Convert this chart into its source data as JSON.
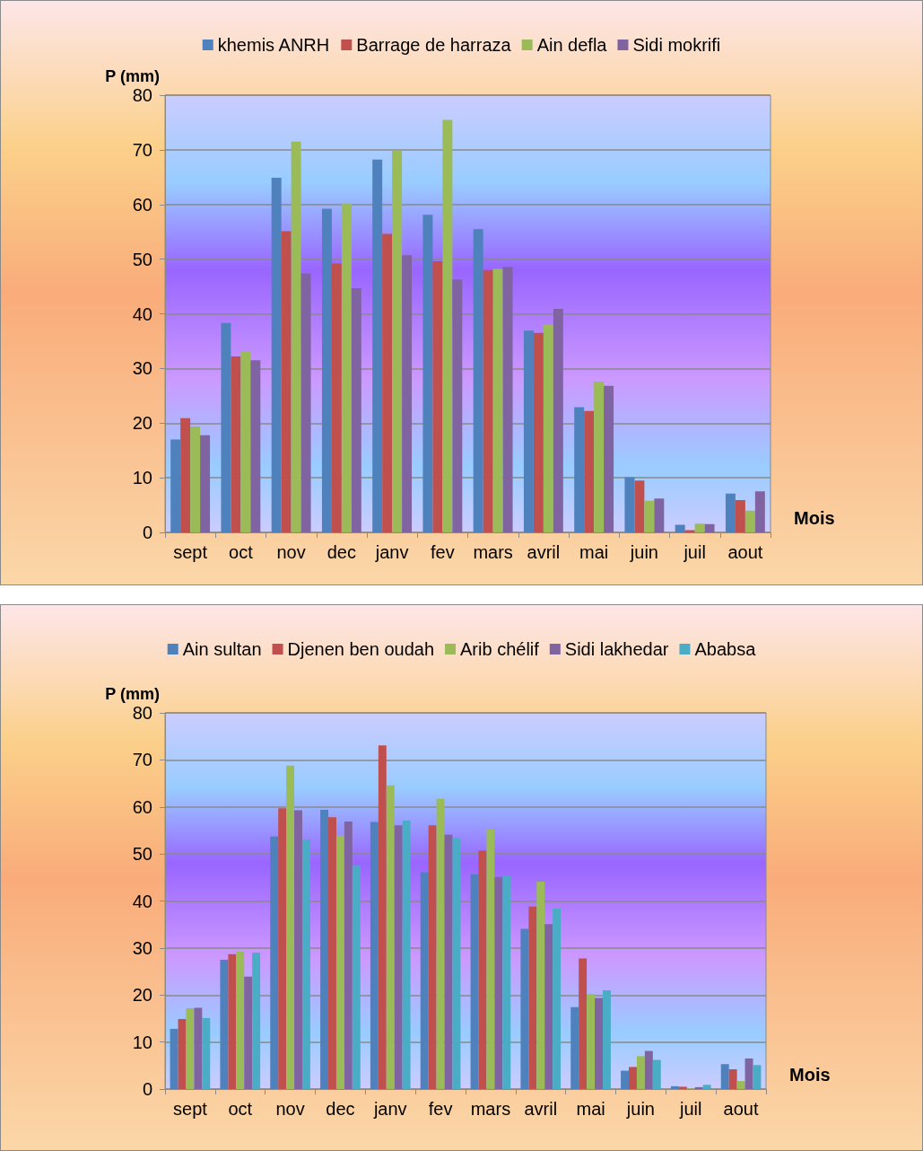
{
  "chart_data": [
    {
      "type": "bar",
      "xlabel": "Mois",
      "ylabel": "P (mm)",
      "categories": [
        "sept",
        "oct",
        "nov",
        "dec",
        "janv",
        "fev",
        "mars",
        "avril",
        "mai",
        "juin",
        "juil",
        "aout"
      ],
      "series": [
        {
          "name": "khemis ANRH",
          "color": "#4f81bd",
          "values": [
            17.0,
            38.3,
            64.9,
            59.2,
            68.2,
            58.1,
            55.5,
            36.9,
            22.9,
            10.1,
            1.4,
            7.1
          ]
        },
        {
          "name": "Barrage de harraza",
          "color": "#c0504d",
          "values": [
            20.9,
            32.2,
            55.1,
            49.2,
            54.6,
            49.6,
            48.0,
            36.5,
            22.2,
            9.5,
            0.4,
            5.9
          ]
        },
        {
          "name": "Ain defla",
          "color": "#9bbb59",
          "values": [
            19.4,
            33.2,
            71.5,
            60.2,
            69.9,
            75.5,
            48.2,
            38.0,
            27.6,
            5.8,
            1.6,
            4.0
          ]
        },
        {
          "name": "Sidi mokrifi",
          "color": "#8064a2",
          "values": [
            17.8,
            31.5,
            47.4,
            44.7,
            50.7,
            46.3,
            48.6,
            40.9,
            26.8,
            6.2,
            1.5,
            7.5
          ]
        }
      ],
      "ylim": [
        0,
        80
      ],
      "yticks": [
        0,
        10,
        20,
        30,
        40,
        50,
        60,
        70,
        80
      ],
      "grid": "y",
      "legend": "top"
    },
    {
      "type": "bar",
      "xlabel": "Mois",
      "ylabel": "P (mm)",
      "categories": [
        "sept",
        "oct",
        "nov",
        "dec",
        "janv",
        "fev",
        "mars",
        "avril",
        "mai",
        "juin",
        "juil",
        "aout"
      ],
      "series": [
        {
          "name": "Ain sultan",
          "color": "#4f81bd",
          "values": [
            12.8,
            27.5,
            53.7,
            59.4,
            56.8,
            46.1,
            45.7,
            34.1,
            17.4,
            3.9,
            0.6,
            5.3
          ]
        },
        {
          "name": "Djenen ben oudah",
          "color": "#c0504d",
          "values": [
            14.9,
            28.7,
            59.7,
            57.8,
            73.1,
            56.1,
            50.7,
            38.8,
            27.8,
            4.7,
            0.5,
            4.2
          ]
        },
        {
          "name": "Arib chélif",
          "color": "#9bbb59",
          "values": [
            17.2,
            29.2,
            68.8,
            53.9,
            64.6,
            61.7,
            55.2,
            44.1,
            20.2,
            7.0,
            0.1,
            1.7
          ]
        },
        {
          "name": "Sidi lakhedar",
          "color": "#8064a2",
          "values": [
            17.3,
            23.9,
            59.3,
            56.9,
            56.1,
            54.1,
            45.1,
            35.1,
            19.4,
            8.1,
            0.4,
            6.5
          ]
        },
        {
          "name": "Ababsa",
          "color": "#4bacc6",
          "values": [
            15.1,
            29.0,
            53.1,
            47.5,
            57.1,
            53.3,
            45.3,
            38.4,
            21.0,
            6.2,
            0.9,
            5.1
          ]
        }
      ],
      "ylim": [
        0,
        80
      ],
      "yticks": [
        0,
        10,
        20,
        30,
        40,
        50,
        60,
        70,
        80
      ],
      "grid": "y",
      "legend": "top"
    }
  ]
}
